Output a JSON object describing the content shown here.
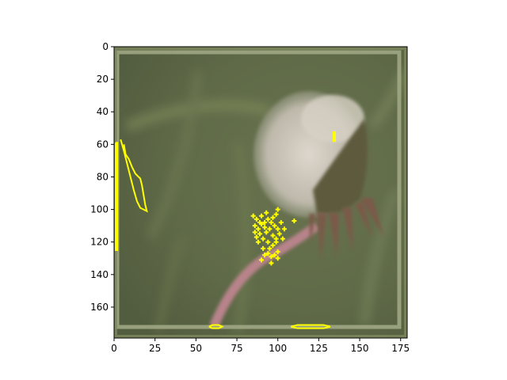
{
  "figure": {
    "image_description": "blurred green background, dandelion seed head with pink stem, faded inner frame",
    "x_ticks": [
      "0",
      "25",
      "50",
      "75",
      "100",
      "125",
      "150",
      "175"
    ],
    "y_ticks": [
      "0",
      "20",
      "40",
      "60",
      "80",
      "100",
      "120",
      "140",
      "160"
    ],
    "x_range": [
      0,
      179
    ],
    "y_range": [
      0,
      179
    ],
    "overlay_color": "#ffff00",
    "frame_color": "#8f9a6f",
    "annotations": [
      {
        "name": "left-edge-contour",
        "points": [
          [
            1,
            59
          ],
          [
            2,
            59
          ],
          [
            2,
            125
          ],
          [
            1,
            125
          ],
          [
            1,
            59
          ]
        ]
      },
      {
        "name": "left-leaf-contour",
        "points": [
          [
            4,
            57
          ],
          [
            6,
            64
          ],
          [
            8,
            72
          ],
          [
            10,
            80
          ],
          [
            12,
            88
          ],
          [
            14,
            95
          ],
          [
            16,
            99
          ],
          [
            18,
            100
          ],
          [
            20,
            101
          ],
          [
            19,
            97
          ],
          [
            18,
            91
          ],
          [
            17,
            85
          ],
          [
            16,
            81
          ],
          [
            13,
            78
          ],
          [
            11,
            74
          ],
          [
            9,
            69
          ],
          [
            7,
            66
          ],
          [
            6,
            60
          ]
        ]
      },
      {
        "name": "right-top-contour",
        "points": [
          [
            134,
            52
          ],
          [
            134,
            58
          ],
          [
            135,
            58
          ],
          [
            135,
            52
          ]
        ]
      },
      {
        "name": "bottom-left-contour",
        "points": [
          [
            58,
            172
          ],
          [
            60,
            171
          ],
          [
            64,
            171
          ],
          [
            66,
            172
          ],
          [
            64,
            173
          ],
          [
            60,
            173
          ],
          [
            58,
            172
          ]
        ]
      },
      {
        "name": "bottom-right-contour",
        "points": [
          [
            108,
            172
          ],
          [
            112,
            171
          ],
          [
            128,
            171
          ],
          [
            132,
            172
          ],
          [
            128,
            173
          ],
          [
            112,
            173
          ],
          [
            108,
            172
          ]
        ]
      }
    ],
    "dots": [
      [
        85,
        104
      ],
      [
        87,
        106
      ],
      [
        86,
        110
      ],
      [
        88,
        112
      ],
      [
        90,
        109
      ],
      [
        92,
        111
      ],
      [
        89,
        115
      ],
      [
        91,
        118
      ],
      [
        93,
        114
      ],
      [
        95,
        112
      ],
      [
        96,
        108
      ],
      [
        97,
        105
      ],
      [
        99,
        103
      ],
      [
        100,
        100
      ],
      [
        98,
        110
      ],
      [
        100,
        112
      ],
      [
        102,
        108
      ],
      [
        101,
        115
      ],
      [
        103,
        118
      ],
      [
        99,
        120
      ],
      [
        97,
        122
      ],
      [
        95,
        124
      ],
      [
        94,
        127
      ],
      [
        96,
        129
      ],
      [
        92,
        128
      ],
      [
        90,
        131
      ],
      [
        91,
        124
      ],
      [
        88,
        120
      ],
      [
        87,
        117
      ],
      [
        86,
        114
      ],
      [
        94,
        106
      ],
      [
        93,
        102
      ],
      [
        97,
        116
      ],
      [
        99,
        118
      ],
      [
        100,
        126
      ],
      [
        98,
        128
      ],
      [
        89,
        108
      ],
      [
        104,
        112
      ],
      [
        110,
        107
      ],
      [
        96,
        133
      ],
      [
        100,
        130
      ],
      [
        94,
        120
      ],
      [
        92,
        108
      ],
      [
        90,
        104
      ]
    ]
  }
}
